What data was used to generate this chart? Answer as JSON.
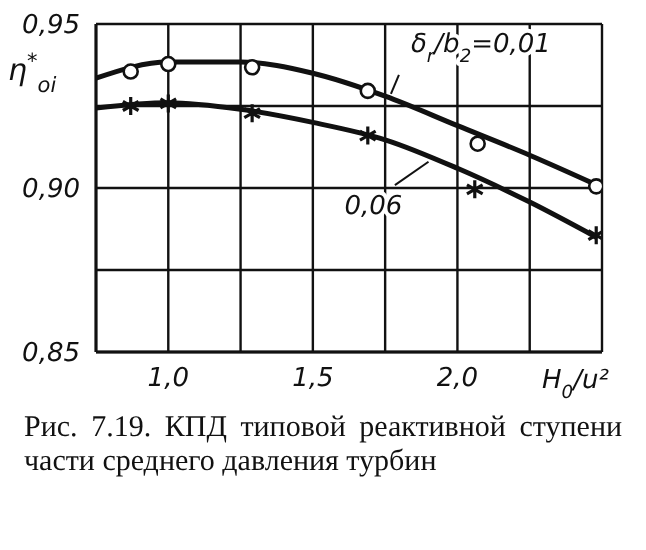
{
  "chart_data": {
    "type": "line",
    "xlabel": "H$_{0}$/u²",
    "ylabel": "η$^{*}$$_{oi}$",
    "xlim": [
      0.75,
      2.5
    ],
    "xticks": [
      {
        "value": 0.75,
        "label": null
      },
      {
        "value": 1.0,
        "label": "1,0"
      },
      {
        "value": 1.25,
        "label": null
      },
      {
        "value": 1.5,
        "label": "1,5"
      },
      {
        "value": 1.75,
        "label": null
      },
      {
        "value": 2.0,
        "label": "2,0"
      },
      {
        "value": 2.25,
        "label": null
      },
      {
        "value": 2.5,
        "label": null
      }
    ],
    "ylim": [
      0.85,
      0.95
    ],
    "yticks": [
      {
        "value": 0.85,
        "label": "0,85"
      },
      {
        "value": 0.875,
        "label": null
      },
      {
        "value": 0.9,
        "label": "0,90"
      },
      {
        "value": 0.925,
        "label": null
      },
      {
        "value": 0.95,
        "label": "0,95"
      }
    ],
    "grid": true,
    "series": [
      {
        "type": "line",
        "color": "#111111",
        "marker": "none",
        "x": [
          0.75,
          1.0,
          1.25,
          1.5,
          1.75,
          2.0,
          2.25,
          2.48
        ],
        "values": [
          0.9335,
          0.9384,
          0.9384,
          0.935,
          0.928,
          0.919,
          0.91,
          0.901
        ]
      },
      {
        "type": "line",
        "color": "#111111",
        "marker": "none",
        "x": [
          0.75,
          1.0,
          1.25,
          1.5,
          1.75,
          2.0,
          2.25,
          2.48
        ],
        "values": [
          0.9244,
          0.926,
          0.924,
          0.92,
          0.9147,
          0.906,
          0.8957,
          0.885
        ]
      },
      {
        "type": "scatter",
        "color": "#111111",
        "marker": "circle",
        "x": [
          0.87,
          1.0,
          1.29,
          1.69,
          2.07,
          2.48
        ],
        "values": [
          0.9355,
          0.9378,
          0.9368,
          0.9296,
          0.9135,
          0.9005
        ]
      },
      {
        "type": "scatter",
        "color": "#111111",
        "marker": "cross",
        "x": [
          0.87,
          1.0,
          1.29,
          1.69,
          2.06,
          2.48
        ],
        "values": [
          0.925,
          0.9258,
          0.9228,
          0.916,
          0.8996,
          0.8856
        ]
      }
    ],
    "annotations": [
      {
        "text": "δ$_{r}$/b$_{2}$=0,01",
        "x": 1.77,
        "y": 0.9287
      },
      {
        "text": "0,06",
        "x": 1.9,
        "y": 0.908
      },
      "Рис. 7.19. КПД типовой реактивной ступени части среднего давления турбин"
    ]
  }
}
